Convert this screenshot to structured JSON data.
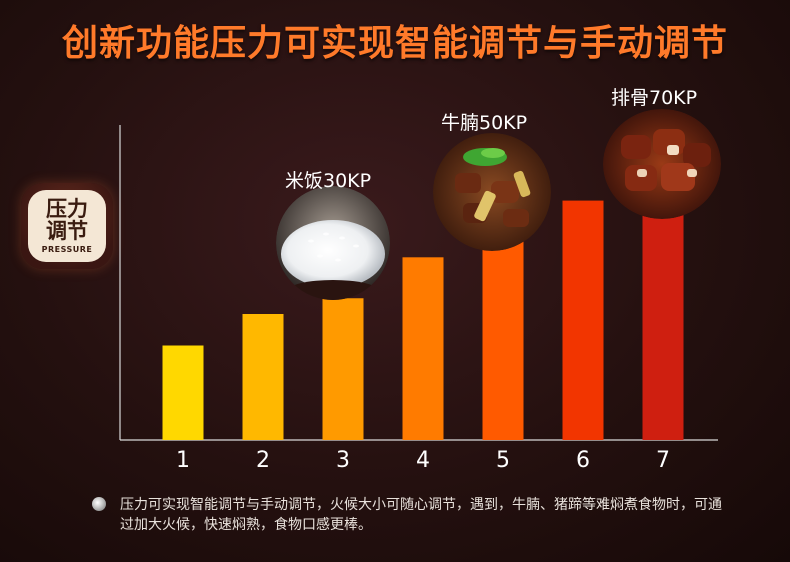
{
  "header": {
    "title": "创新功能压力可实现智能调节与手动调节"
  },
  "badge": {
    "line1": "压力",
    "line2": "调节",
    "sub": "PRESSURE"
  },
  "chart_data": {
    "type": "bar",
    "categories": [
      "1",
      "2",
      "3",
      "4",
      "5",
      "6",
      "7"
    ],
    "values": [
      30,
      40,
      45,
      58,
      68,
      76,
      74
    ],
    "ylim": [
      0,
      100
    ],
    "grid": false,
    "colors": [
      "#ffd800",
      "#ffb800",
      "#ff9a00",
      "#ff7b00",
      "#ff5a00",
      "#f23500",
      "#cf1f10"
    ]
  },
  "foods": [
    {
      "label": "米饭30KP",
      "icon": "rice-bowl-icon"
    },
    {
      "label": "牛腩50KP",
      "icon": "beef-stew-icon"
    },
    {
      "label": "排骨70KP",
      "icon": "pork-ribs-icon"
    }
  ],
  "footnote": "压力可实现智能调节与手动调节，火候大小可随心调节，遇到，牛腩、猪蹄等难焖煮食物时，可通过加大火候，快速焖熟，食物口感更棒。"
}
